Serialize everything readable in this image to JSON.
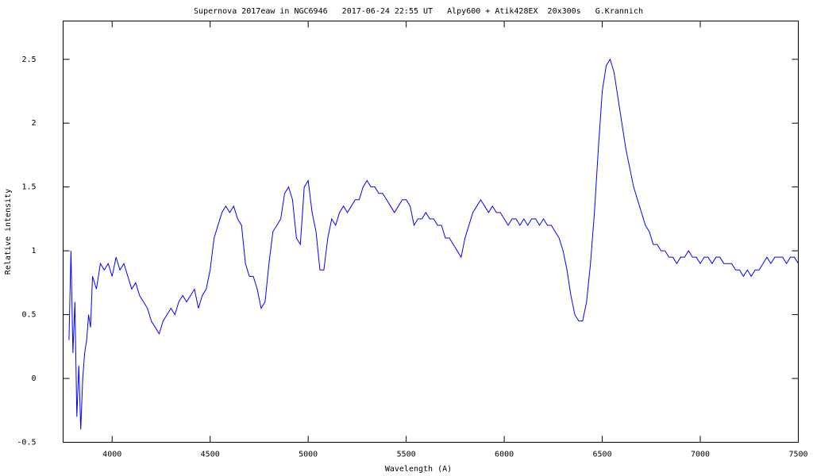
{
  "chart_data": {
    "type": "line",
    "title": "Supernova 2017eaw in NGC6946   2017-06-24 22:55 UT   Alpy600 + Atik428EX  20x300s   G.Krannich",
    "x_label": "Wavelength (A)",
    "y_label": "Relative intensity",
    "color": "#0000ff",
    "x": [
      3780,
      3790,
      3800,
      3810,
      3820,
      3830,
      3840,
      3850,
      3860,
      3870,
      3880,
      3890,
      3900,
      3920,
      3940,
      3960,
      3980,
      4000,
      4020,
      4040,
      4060,
      4080,
      4100,
      4120,
      4140,
      4160,
      4180,
      4200,
      4220,
      4240,
      4260,
      4280,
      4300,
      4320,
      4340,
      4360,
      4380,
      4400,
      4420,
      4440,
      4460,
      4480,
      4500,
      4520,
      4540,
      4560,
      4580,
      4600,
      4620,
      4640,
      4660,
      4680,
      4700,
      4720,
      4740,
      4760,
      4780,
      4800,
      4820,
      4840,
      4860,
      4880,
      4900,
      4920,
      4940,
      4960,
      4980,
      5000,
      5020,
      5040,
      5060,
      5080,
      5100,
      5120,
      5140,
      5160,
      5180,
      5200,
      5220,
      5240,
      5260,
      5280,
      5300,
      5320,
      5340,
      5360,
      5380,
      5400,
      5420,
      5440,
      5460,
      5480,
      5500,
      5520,
      5540,
      5560,
      5580,
      5600,
      5620,
      5640,
      5660,
      5680,
      5700,
      5720,
      5740,
      5760,
      5780,
      5800,
      5820,
      5840,
      5860,
      5880,
      5900,
      5920,
      5940,
      5960,
      5980,
      6000,
      6020,
      6040,
      6060,
      6080,
      6100,
      6120,
      6140,
      6160,
      6180,
      6200,
      6220,
      6240,
      6260,
      6280,
      6300,
      6320,
      6340,
      6360,
      6380,
      6400,
      6420,
      6440,
      6460,
      6480,
      6500,
      6520,
      6540,
      6560,
      6580,
      6600,
      6620,
      6640,
      6660,
      6680,
      6700,
      6720,
      6740,
      6760,
      6780,
      6800,
      6820,
      6840,
      6860,
      6880,
      6900,
      6920,
      6940,
      6960,
      6980,
      7000,
      7020,
      7040,
      7060,
      7080,
      7100,
      7120,
      7140,
      7160,
      7180,
      7200,
      7220,
      7240,
      7260,
      7280,
      7300,
      7320,
      7340,
      7360,
      7380,
      7400,
      7420,
      7440,
      7460,
      7480,
      7500
    ],
    "values": [
      0.3,
      1.0,
      0.2,
      0.6,
      -0.3,
      0.1,
      -0.4,
      0.0,
      0.2,
      0.3,
      0.5,
      0.4,
      0.8,
      0.7,
      0.9,
      0.85,
      0.9,
      0.8,
      0.95,
      0.85,
      0.9,
      0.8,
      0.7,
      0.75,
      0.65,
      0.6,
      0.55,
      0.45,
      0.4,
      0.35,
      0.45,
      0.5,
      0.55,
      0.5,
      0.6,
      0.65,
      0.6,
      0.65,
      0.7,
      0.55,
      0.65,
      0.7,
      0.85,
      1.1,
      1.2,
      1.3,
      1.35,
      1.3,
      1.35,
      1.25,
      1.2,
      0.9,
      0.8,
      0.8,
      0.7,
      0.55,
      0.6,
      0.9,
      1.15,
      1.2,
      1.25,
      1.45,
      1.5,
      1.4,
      1.1,
      1.05,
      1.5,
      1.55,
      1.3,
      1.15,
      0.85,
      0.85,
      1.1,
      1.25,
      1.2,
      1.3,
      1.35,
      1.3,
      1.35,
      1.4,
      1.4,
      1.5,
      1.55,
      1.5,
      1.5,
      1.45,
      1.45,
      1.4,
      1.35,
      1.3,
      1.35,
      1.4,
      1.4,
      1.35,
      1.2,
      1.25,
      1.25,
      1.3,
      1.25,
      1.25,
      1.2,
      1.2,
      1.1,
      1.1,
      1.05,
      1.0,
      0.95,
      1.1,
      1.2,
      1.3,
      1.35,
      1.4,
      1.35,
      1.3,
      1.35,
      1.3,
      1.3,
      1.25,
      1.2,
      1.25,
      1.25,
      1.2,
      1.25,
      1.2,
      1.25,
      1.25,
      1.2,
      1.25,
      1.2,
      1.2,
      1.15,
      1.1,
      1.0,
      0.85,
      0.65,
      0.5,
      0.45,
      0.45,
      0.6,
      0.9,
      1.3,
      1.8,
      2.25,
      2.45,
      2.5,
      2.4,
      2.2,
      2.0,
      1.8,
      1.65,
      1.5,
      1.4,
      1.3,
      1.2,
      1.15,
      1.05,
      1.05,
      1.0,
      1.0,
      0.95,
      0.95,
      0.9,
      0.95,
      0.95,
      1.0,
      0.95,
      0.95,
      0.9,
      0.95,
      0.95,
      0.9,
      0.95,
      0.95,
      0.9,
      0.9,
      0.9,
      0.85,
      0.85,
      0.8,
      0.85,
      0.8,
      0.85,
      0.85,
      0.9,
      0.95,
      0.9,
      0.95,
      0.95,
      0.95,
      0.9,
      0.95,
      0.95,
      0.9
    ],
    "xlim": [
      3750,
      7500
    ],
    "ylim": [
      -0.5,
      2.8
    ],
    "xticks": [
      4000,
      4500,
      5000,
      5500,
      6000,
      6500,
      7000,
      7500
    ],
    "yticks": [
      -0.5,
      0,
      0.5,
      1,
      1.5,
      2,
      2.5
    ]
  }
}
